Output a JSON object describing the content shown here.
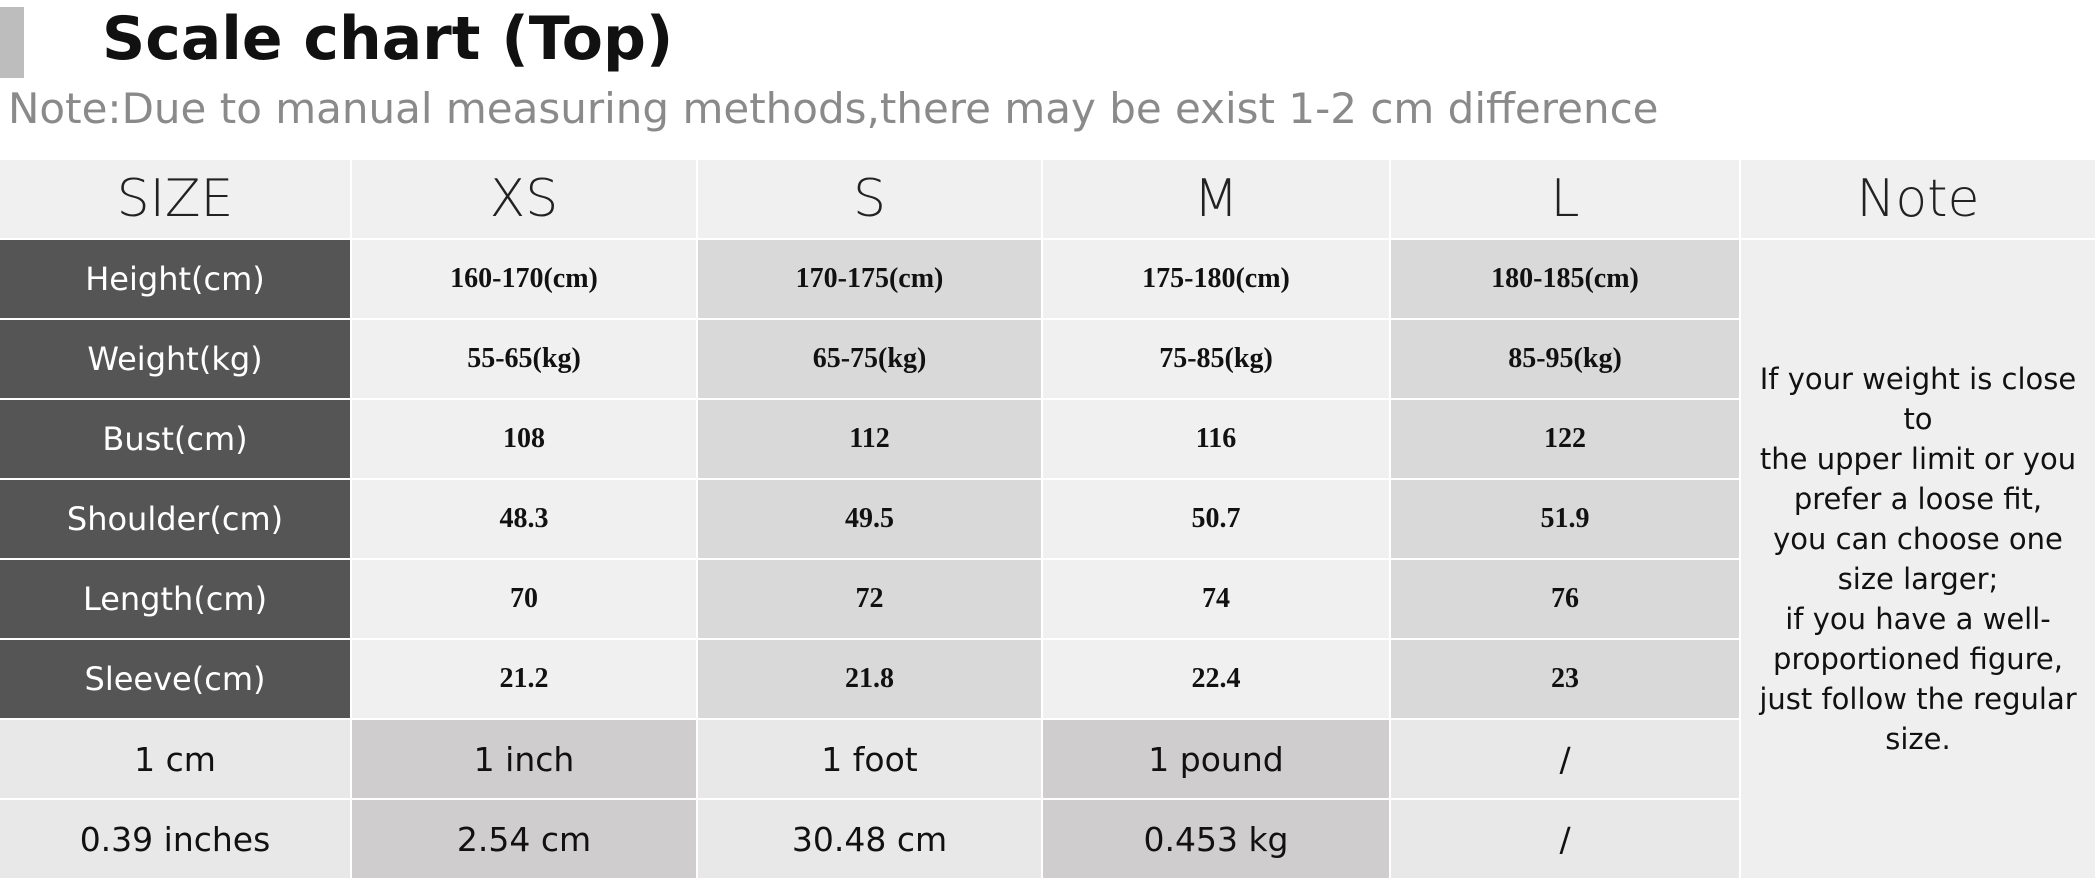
{
  "header": {
    "title": "Scale chart (Top)",
    "note": "Note:Due to manual measuring methods,there may be exist 1-2 cm difference"
  },
  "table": {
    "columns": [
      "SIZE",
      "XS",
      "S",
      "M",
      "L",
      "Note"
    ],
    "rows": [
      {
        "label": "Height(cm)",
        "values": [
          "160-170(cm)",
          "170-175(cm)",
          "175-180(cm)",
          "180-185(cm)"
        ]
      },
      {
        "label": "Weight(kg)",
        "values": [
          "55-65(kg)",
          "65-75(kg)",
          "75-85(kg)",
          "85-95(kg)"
        ]
      },
      {
        "label": "Bust(cm)",
        "values": [
          108,
          112,
          116,
          122
        ]
      },
      {
        "label": "Shoulder(cm)",
        "values": [
          48.3,
          49.5,
          50.7,
          51.9
        ]
      },
      {
        "label": "Length(cm)",
        "values": [
          70,
          72,
          74,
          76
        ]
      },
      {
        "label": "Sleeve(cm)",
        "values": [
          21.2,
          21.8,
          22.4,
          23
        ]
      }
    ],
    "conversions": [
      [
        "1 cm",
        "1 inch",
        "1 foot",
        "1 pound",
        "/"
      ],
      [
        "0.39 inches",
        "2.54 cm",
        "30.48 cm",
        "0.453 kg",
        "/"
      ]
    ],
    "note_lines": [
      "If your weight is close to",
      "the upper limit or you",
      "prefer a loose fit,",
      "you can choose one",
      "size larger;",
      "if you have a well-",
      "proportioned figure,",
      "just follow the regular",
      "size."
    ]
  }
}
